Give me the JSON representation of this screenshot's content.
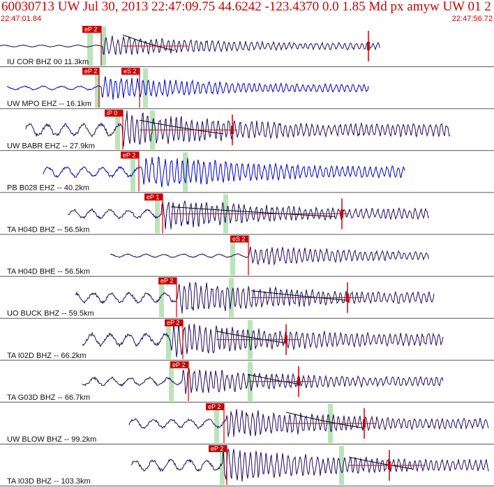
{
  "header": {
    "title": "60030713 UW Jul 30, 2013 22:47:09.75   44.6242 -123.4370  0.0 1.85 Md px amyw UW 01   2",
    "start_time": "22:47:01.84",
    "end_time": "22:47:56.72"
  },
  "colors": {
    "accent": "#cc0000",
    "pick_window": "#b9e4b9",
    "trace_blue": "#0000cc",
    "trace_navy": "#1e0a5c",
    "coda_line": "#000000"
  },
  "traces": [
    {
      "label": "IU COR BHZ 00 11.3km",
      "color": "#1e0a5c",
      "picks": [
        {
          "text": "eP 2"
        }
      ],
      "secondary_picks": []
    },
    {
      "label": "UW MPO EHZ -- 16.1km",
      "color": "#0000cc",
      "picks": [
        {
          "text": "eP 2"
        }
      ],
      "secondary_picks": [
        {
          "text": "eS 2"
        }
      ]
    },
    {
      "label": "UW BABR EHZ -- 27.9km",
      "color": "#1e0a5c",
      "picks": [
        {
          "text": "iP 0"
        }
      ],
      "secondary_picks": []
    },
    {
      "label": "PB B028 EHZ -- 40.2km",
      "color": "#0000cc",
      "picks": [
        {
          "text": "eP 2"
        }
      ],
      "secondary_picks": []
    },
    {
      "label": "TA H04D BHZ -- 56.5km",
      "color": "#1e0a5c",
      "picks": [
        {
          "text": "eP 1"
        }
      ],
      "secondary_picks": []
    },
    {
      "label": "TA H04D BHE -- 56.5km",
      "color": "#1e0a5c",
      "picks": [],
      "secondary_picks": [
        {
          "text": "eS 2"
        }
      ]
    },
    {
      "label": "UO BUCK BHZ -- 59.5km",
      "color": "#1e0a5c",
      "picks": [
        {
          "text": "eP 2"
        }
      ],
      "secondary_picks": []
    },
    {
      "label": "TA I02D BHZ -- 66.2km",
      "color": "#1e0a5c",
      "picks": [
        {
          "text": "eP 2"
        }
      ],
      "secondary_picks": []
    },
    {
      "label": "TA G03D BHZ -- 66.7km",
      "color": "#1e0a5c",
      "picks": [
        {
          "text": "eP 2"
        }
      ],
      "secondary_picks": []
    },
    {
      "label": "UW BLOW BHZ -- 99.2km",
      "color": "#1e0a5c",
      "picks": [
        {
          "text": "eP 2"
        }
      ],
      "secondary_picks": []
    },
    {
      "label": "TA I03D BHZ -- 103.3km",
      "color": "#1e0a5c",
      "picks": [
        {
          "text": "eP 2"
        }
      ],
      "secondary_picks": []
    }
  ]
}
